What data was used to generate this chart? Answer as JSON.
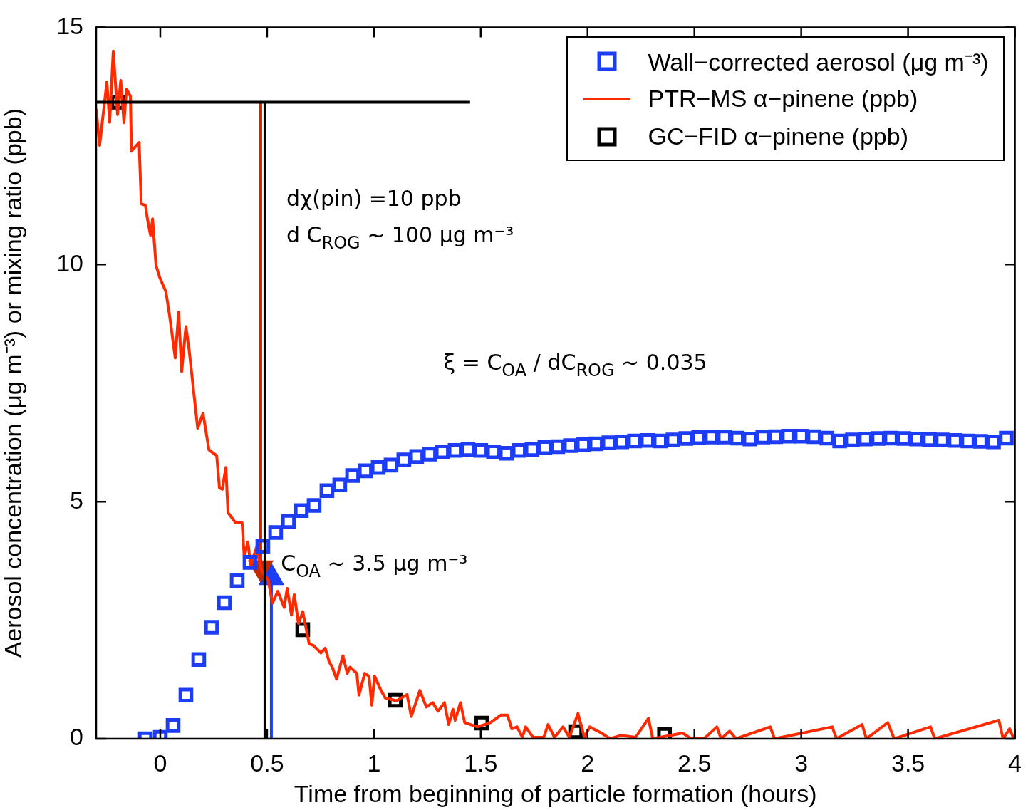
{
  "chart_data": {
    "type": "scatter",
    "xlabel": "Time from beginning of particle formation (hours)",
    "ylabel": "Aerosol concentration (μg m⁻³) or mixing ratio (ppb)",
    "xlim": [
      -0.3,
      4
    ],
    "xticks": [
      0,
      0.5,
      1,
      1.5,
      2,
      2.5,
      3,
      3.5,
      4
    ],
    "ylim": [
      0,
      15
    ],
    "yticks": [
      0,
      5,
      10,
      15
    ],
    "grid": false,
    "legend": "top right",
    "annotations": [
      "dχ(pin) =10 ppb",
      "d C$_{ROG}$ ~ 100 μg m⁻³",
      "ξ = C$_{OA}$ / dC$_{ROG}$ ~ 0.035",
      "C$_{OA}$ ~ 3.5 μg m⁻³"
    ],
    "series": [
      {
        "type": "line",
        "color": "#000000",
        "marker": "none",
        "x": [
          -0.3,
          1.45
        ],
        "values": [
          13.42,
          13.42
        ]
      },
      {
        "type": "line",
        "color": "#000000",
        "marker": "none",
        "x": [
          0.49,
          0.49
        ],
        "values": [
          0,
          13.42
        ]
      },
      {
        "type": "scatter",
        "name": "Wall−corrected aerosol (μg m⁻³)",
        "color": "#1c3cf5",
        "marker": "square",
        "x": [
          -0.07,
          0,
          0.06,
          0.12,
          0.18,
          0.24,
          0.3,
          0.36,
          0.42,
          0.48,
          0.54,
          0.6,
          0.66,
          0.72,
          0.78,
          0.84,
          0.9,
          0.96,
          1.02,
          1.08,
          1.14,
          1.2,
          1.26,
          1.32,
          1.38,
          1.44,
          1.5,
          1.56,
          1.62,
          1.68,
          1.74,
          1.8,
          1.86,
          1.92,
          1.98,
          2.04,
          2.1,
          2.16,
          2.22,
          2.28,
          2.34,
          2.4,
          2.46,
          2.52,
          2.58,
          2.64,
          2.7,
          2.76,
          2.82,
          2.88,
          2.94,
          3.0,
          3.06,
          3.12,
          3.18,
          3.24,
          3.3,
          3.36,
          3.42,
          3.48,
          3.54,
          3.6,
          3.66,
          3.72,
          3.78,
          3.84,
          3.9,
          3.96
        ],
        "values": [
          0,
          0.03,
          0.28,
          0.92,
          1.67,
          2.35,
          2.87,
          3.33,
          3.72,
          4.06,
          4.35,
          4.58,
          4.81,
          4.92,
          5.23,
          5.35,
          5.55,
          5.65,
          5.72,
          5.77,
          5.88,
          5.95,
          6.0,
          6.05,
          6.08,
          6.1,
          6.08,
          6.05,
          6.02,
          6.08,
          6.1,
          6.14,
          6.16,
          6.18,
          6.2,
          6.22,
          6.24,
          6.26,
          6.28,
          6.29,
          6.28,
          6.3,
          6.33,
          6.35,
          6.36,
          6.36,
          6.34,
          6.32,
          6.36,
          6.37,
          6.38,
          6.38,
          6.37,
          6.34,
          6.28,
          6.3,
          6.32,
          6.33,
          6.34,
          6.33,
          6.32,
          6.31,
          6.3,
          6.29,
          6.28,
          6.27,
          6.26,
          6.34
        ]
      },
      {
        "type": "line",
        "name": "PTR−MS α−pinene (ppb)",
        "color": "#ff2a00",
        "marker": "none",
        "x": [
          -0.3,
          -0.284,
          -0.25,
          -0.237,
          -0.22,
          -0.2,
          -0.185,
          -0.17,
          -0.158,
          -0.14,
          -0.135,
          -0.099,
          -0.089,
          -0.07,
          -0.06,
          -0.046,
          -0.036,
          -0.02,
          -0.003,
          0.026,
          0.043,
          0.07,
          0.086,
          0.1,
          0.12,
          0.135,
          0.175,
          0.2,
          0.228,
          0.264,
          0.277,
          0.29,
          0.307,
          0.317,
          0.353,
          0.383,
          0.393,
          0.41,
          0.423,
          0.45,
          0.475,
          0.505,
          0.525,
          0.55,
          0.58,
          0.594,
          0.614,
          0.627,
          0.647,
          0.667,
          0.697,
          0.716,
          0.752,
          0.772,
          0.79,
          0.805,
          0.825,
          0.855,
          0.875,
          0.888,
          0.92,
          0.93,
          0.957,
          0.977,
          0.99,
          1.003,
          1.033,
          1.053,
          1.105,
          1.155,
          1.175,
          1.215,
          1.245,
          1.275,
          1.3,
          1.33,
          1.35,
          1.37,
          1.38,
          1.405,
          1.425,
          1.485,
          1.545,
          1.595,
          1.625,
          1.645,
          1.67,
          1.695,
          1.71,
          1.745,
          1.795,
          1.815,
          1.845,
          1.885,
          1.915,
          1.955,
          1.985,
          2.01,
          2.065,
          2.105,
          2.155,
          2.225,
          2.285,
          2.305,
          2.445,
          2.485,
          2.545,
          2.605,
          2.625,
          2.665,
          2.695,
          2.855,
          2.875,
          3.145,
          3.165,
          3.285,
          3.305,
          3.405,
          3.435,
          3.605,
          3.625,
          3.925,
          3.945,
          3.975,
          3.995
        ],
        "values": [
          13.28,
          12.51,
          13.85,
          13.0,
          14.5,
          13.16,
          13.88,
          12.99,
          13.7,
          13.55,
          12.39,
          12.57,
          11.28,
          11.25,
          10.96,
          10.62,
          10.96,
          9.98,
          9.73,
          9.43,
          8.94,
          8.03,
          9.0,
          7.74,
          8.69,
          8.2,
          6.55,
          6.86,
          6.09,
          5.97,
          5.29,
          5.26,
          5.72,
          4.77,
          4.55,
          4.55,
          3.84,
          4.15,
          3.66,
          4.03,
          3.54,
          3.35,
          2.86,
          3.11,
          2.77,
          3.17,
          2.61,
          3.04,
          2.43,
          2.68,
          2.0,
          1.97,
          1.81,
          1.91,
          1.63,
          1.51,
          1.26,
          1.75,
          1.38,
          1.51,
          1.38,
          0.92,
          1.38,
          1.32,
          0.71,
          1.32,
          1.02,
          0.86,
          0.8,
          0.93,
          0.47,
          1.02,
          0.67,
          0.76,
          0.58,
          0.76,
          0.3,
          0.62,
          0.39,
          0.76,
          0.34,
          0.25,
          0.34,
          0.5,
          0.5,
          0.21,
          0.25,
          0.03,
          0.25,
          0.03,
          0.03,
          0.3,
          0.03,
          0.25,
          0.03,
          0.53,
          0.03,
          0.25,
          0.12,
          0,
          0.07,
          0.03,
          0.43,
          0,
          0.12,
          0,
          0,
          0.25,
          0,
          0.16,
          0,
          0.25,
          0,
          0.25,
          0,
          0.3,
          0,
          0.34,
          0,
          0.25,
          0,
          0.39,
          0,
          0.21,
          0
        ]
      },
      {
        "type": "scatter",
        "name": "GC−FID α−pinene (ppb)",
        "color": "#000000",
        "marker": "square",
        "x": [
          -0.198,
          0.667,
          1.1,
          1.505,
          1.944,
          2.36
        ],
        "values": [
          13.42,
          2.3,
          0.81,
          0.33,
          0.15,
          0.09
        ]
      },
      {
        "type": "line",
        "color": "#c02a00",
        "marker": "triangle",
        "x": [
          0.47,
          0.47
        ],
        "values": [
          13.42,
          3.6
        ]
      },
      {
        "type": "line",
        "color": "#1c3cf5",
        "marker": "triangle",
        "x": [
          0.52,
          0.52
        ],
        "values": [
          0,
          3.4
        ]
      }
    ]
  }
}
